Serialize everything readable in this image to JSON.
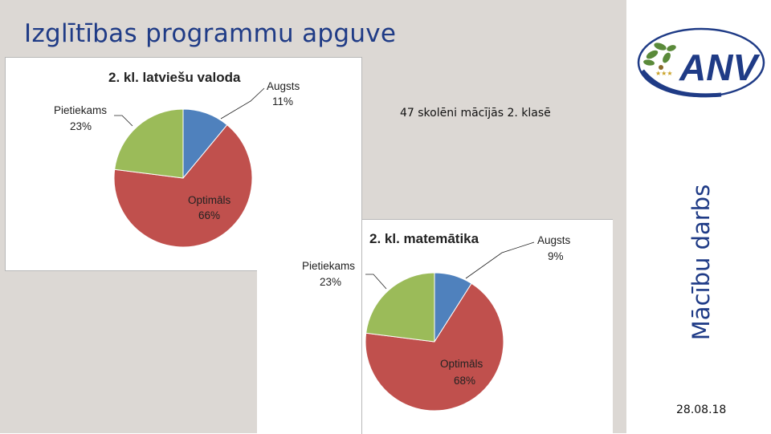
{
  "slide": {
    "title": "Izglītības programmu apguve",
    "subtitle": "47 skolēni mācījās 2. klasē",
    "vertical_label": "Mācību darbs",
    "date": "28.08.18",
    "logo_text": "ANV"
  },
  "colors": {
    "accent_blue": "#1f3b86",
    "augsts": "#4f81bd",
    "optimals": "#c0504d",
    "pietiekams": "#9bbb59"
  },
  "chart_data": [
    {
      "type": "pie",
      "title": "2. kl. latviešu valoda",
      "slices": [
        {
          "label": "Augsts",
          "value": 11,
          "display": "11%",
          "color": "#4f81bd"
        },
        {
          "label": "Optimāls",
          "value": 66,
          "display": "66%",
          "color": "#c0504d"
        },
        {
          "label": "Pietiekams",
          "value": 23,
          "display": "23%",
          "color": "#9bbb59"
        }
      ]
    },
    {
      "type": "pie",
      "title": "2. kl. matemātika",
      "slices": [
        {
          "label": "Augsts",
          "value": 9,
          "display": "9%",
          "color": "#4f81bd"
        },
        {
          "label": "Optimāls",
          "value": 68,
          "display": "68%",
          "color": "#c0504d"
        },
        {
          "label": "Pietiekams",
          "value": 23,
          "display": "23%",
          "color": "#9bbb59"
        }
      ]
    }
  ]
}
